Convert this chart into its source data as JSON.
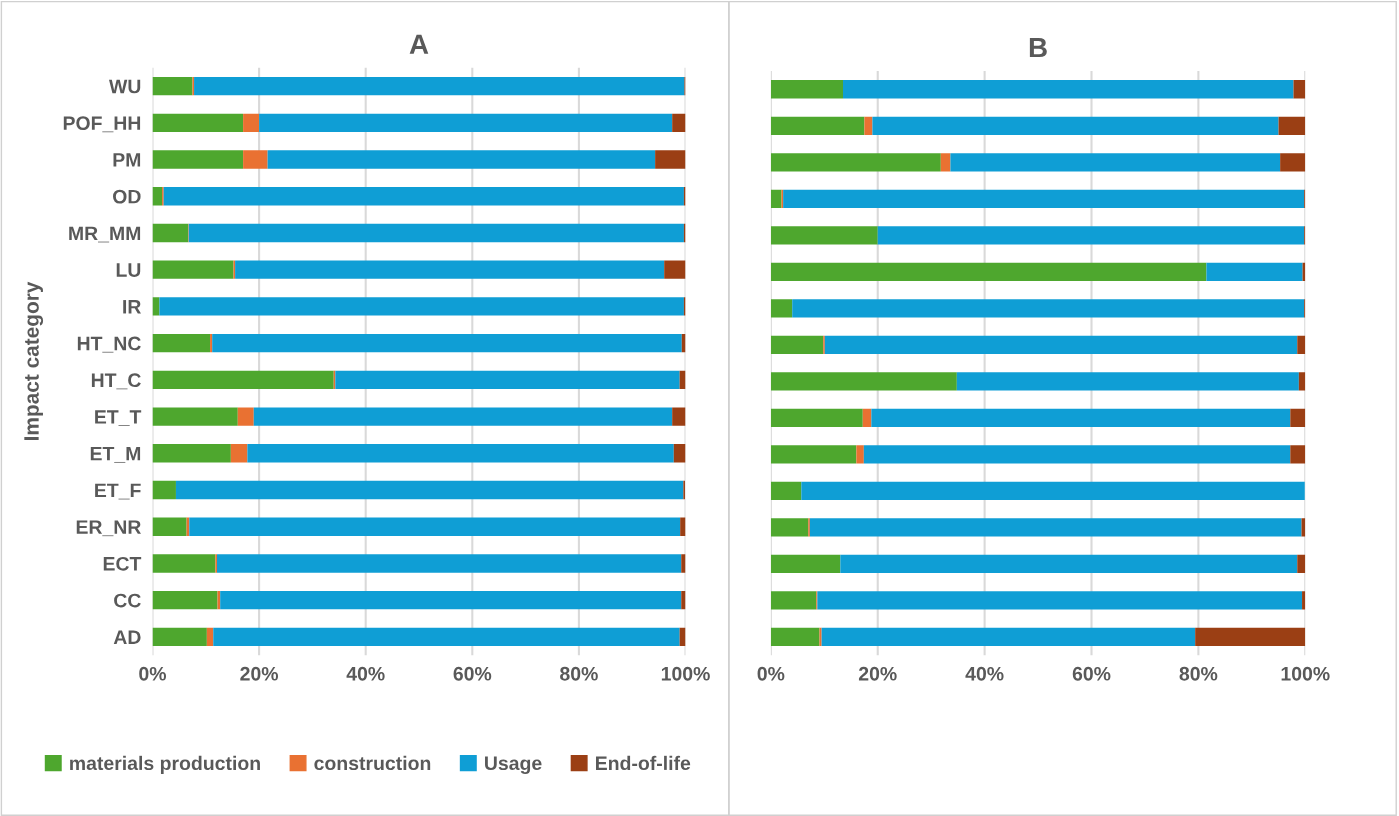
{
  "chart_data": [
    {
      "type": "bar",
      "orientation": "horizontal",
      "stacked": true,
      "title": "A",
      "ylabel": "Impact category",
      "legend": "bottom",
      "grid": "x",
      "categories": [
        "WU",
        "POF_HH",
        "PM",
        "OD",
        "MR_MM",
        "LU",
        "IR",
        "HT_NC",
        "HT_C",
        "ET_T",
        "ET_M",
        "ET_F",
        "ER_NR",
        "ECT",
        "CC",
        "AD"
      ],
      "xlim": [
        0,
        100
      ],
      "xticks": [
        {
          "value": 0,
          "label": "0%"
        },
        {
          "value": 20,
          "label": "20%"
        },
        {
          "value": 40,
          "label": "40%"
        },
        {
          "value": 60,
          "label": "60%"
        },
        {
          "value": 80,
          "label": "80%"
        },
        {
          "value": 100,
          "label": "100%"
        }
      ],
      "series": [
        {
          "name": "materials production",
          "color": "#4ea72e",
          "values": [
            7.5,
            17,
            17,
            1.8,
            6.7,
            15.2,
            1.3,
            10.8,
            34,
            16,
            14.7,
            4.4,
            6.4,
            11.8,
            12.2,
            10.2
          ]
        },
        {
          "name": "construction",
          "color": "#e97132",
          "values": [
            0.3,
            3,
            4.6,
            0.3,
            0.1,
            0.3,
            0,
            0.4,
            0.3,
            3,
            3.1,
            null,
            0.5,
            0.3,
            0.5,
            1.2
          ]
        },
        {
          "name": "Usage",
          "color": "#0f9ed5",
          "values": [
            92,
            77.5,
            72.7,
            97.6,
            92.9,
            80.5,
            98.4,
            88.1,
            64.6,
            78.5,
            80,
            95.2,
            92.1,
            87.1,
            86.5,
            87.5
          ]
        },
        {
          "name": "End-of-life",
          "color": "#9b3f14",
          "values": [
            0.2,
            2.5,
            5.7,
            0.3,
            0.3,
            4,
            0.3,
            0.7,
            1.1,
            2.5,
            2.2,
            0.3,
            1,
            0.8,
            0.8,
            1.1
          ]
        }
      ]
    },
    {
      "type": "bar",
      "orientation": "horizontal",
      "stacked": true,
      "title": "B",
      "grid": "x",
      "categories": [
        null,
        null,
        null,
        null,
        null,
        null,
        null,
        null,
        null,
        null,
        null,
        null,
        null,
        null,
        null,
        null
      ],
      "xlim": [
        0,
        100
      ],
      "xticks": [
        {
          "value": 0,
          "label": "0%"
        },
        {
          "value": 20,
          "label": "20%"
        },
        {
          "value": 40,
          "label": "40%"
        },
        {
          "value": 60,
          "label": "60%"
        },
        {
          "value": 80,
          "label": "80%"
        },
        {
          "value": 100,
          "label": "100%"
        }
      ],
      "series": [
        {
          "color": "#4ea72e",
          "values": [
            13.5,
            17.5,
            31.8,
            2,
            20,
            81.5,
            4,
            9.8,
            34.8,
            17.2,
            16,
            5.7,
            7,
            13,
            8.5,
            9.1
          ]
        },
        {
          "color": "#e97132",
          "values": [
            0,
            1.5,
            1.8,
            0.3,
            0,
            0,
            0,
            0.3,
            0,
            1.6,
            1.4,
            0,
            0.3,
            0,
            0.2,
            0.4
          ]
        },
        {
          "color": "#0f9ed5",
          "values": [
            84.3,
            76,
            61.7,
            97.5,
            79.8,
            18,
            95.8,
            88.4,
            64,
            78.4,
            79.8,
            94.2,
            92,
            85.5,
            90.7,
            69.9
          ]
        },
        {
          "color": "#9b3f14",
          "values": [
            2.2,
            5,
            4.7,
            0.2,
            0.2,
            0.5,
            0.2,
            1.5,
            1.2,
            2.8,
            2.8,
            null,
            0.7,
            1.5,
            0.6,
            20.6
          ]
        }
      ]
    }
  ]
}
